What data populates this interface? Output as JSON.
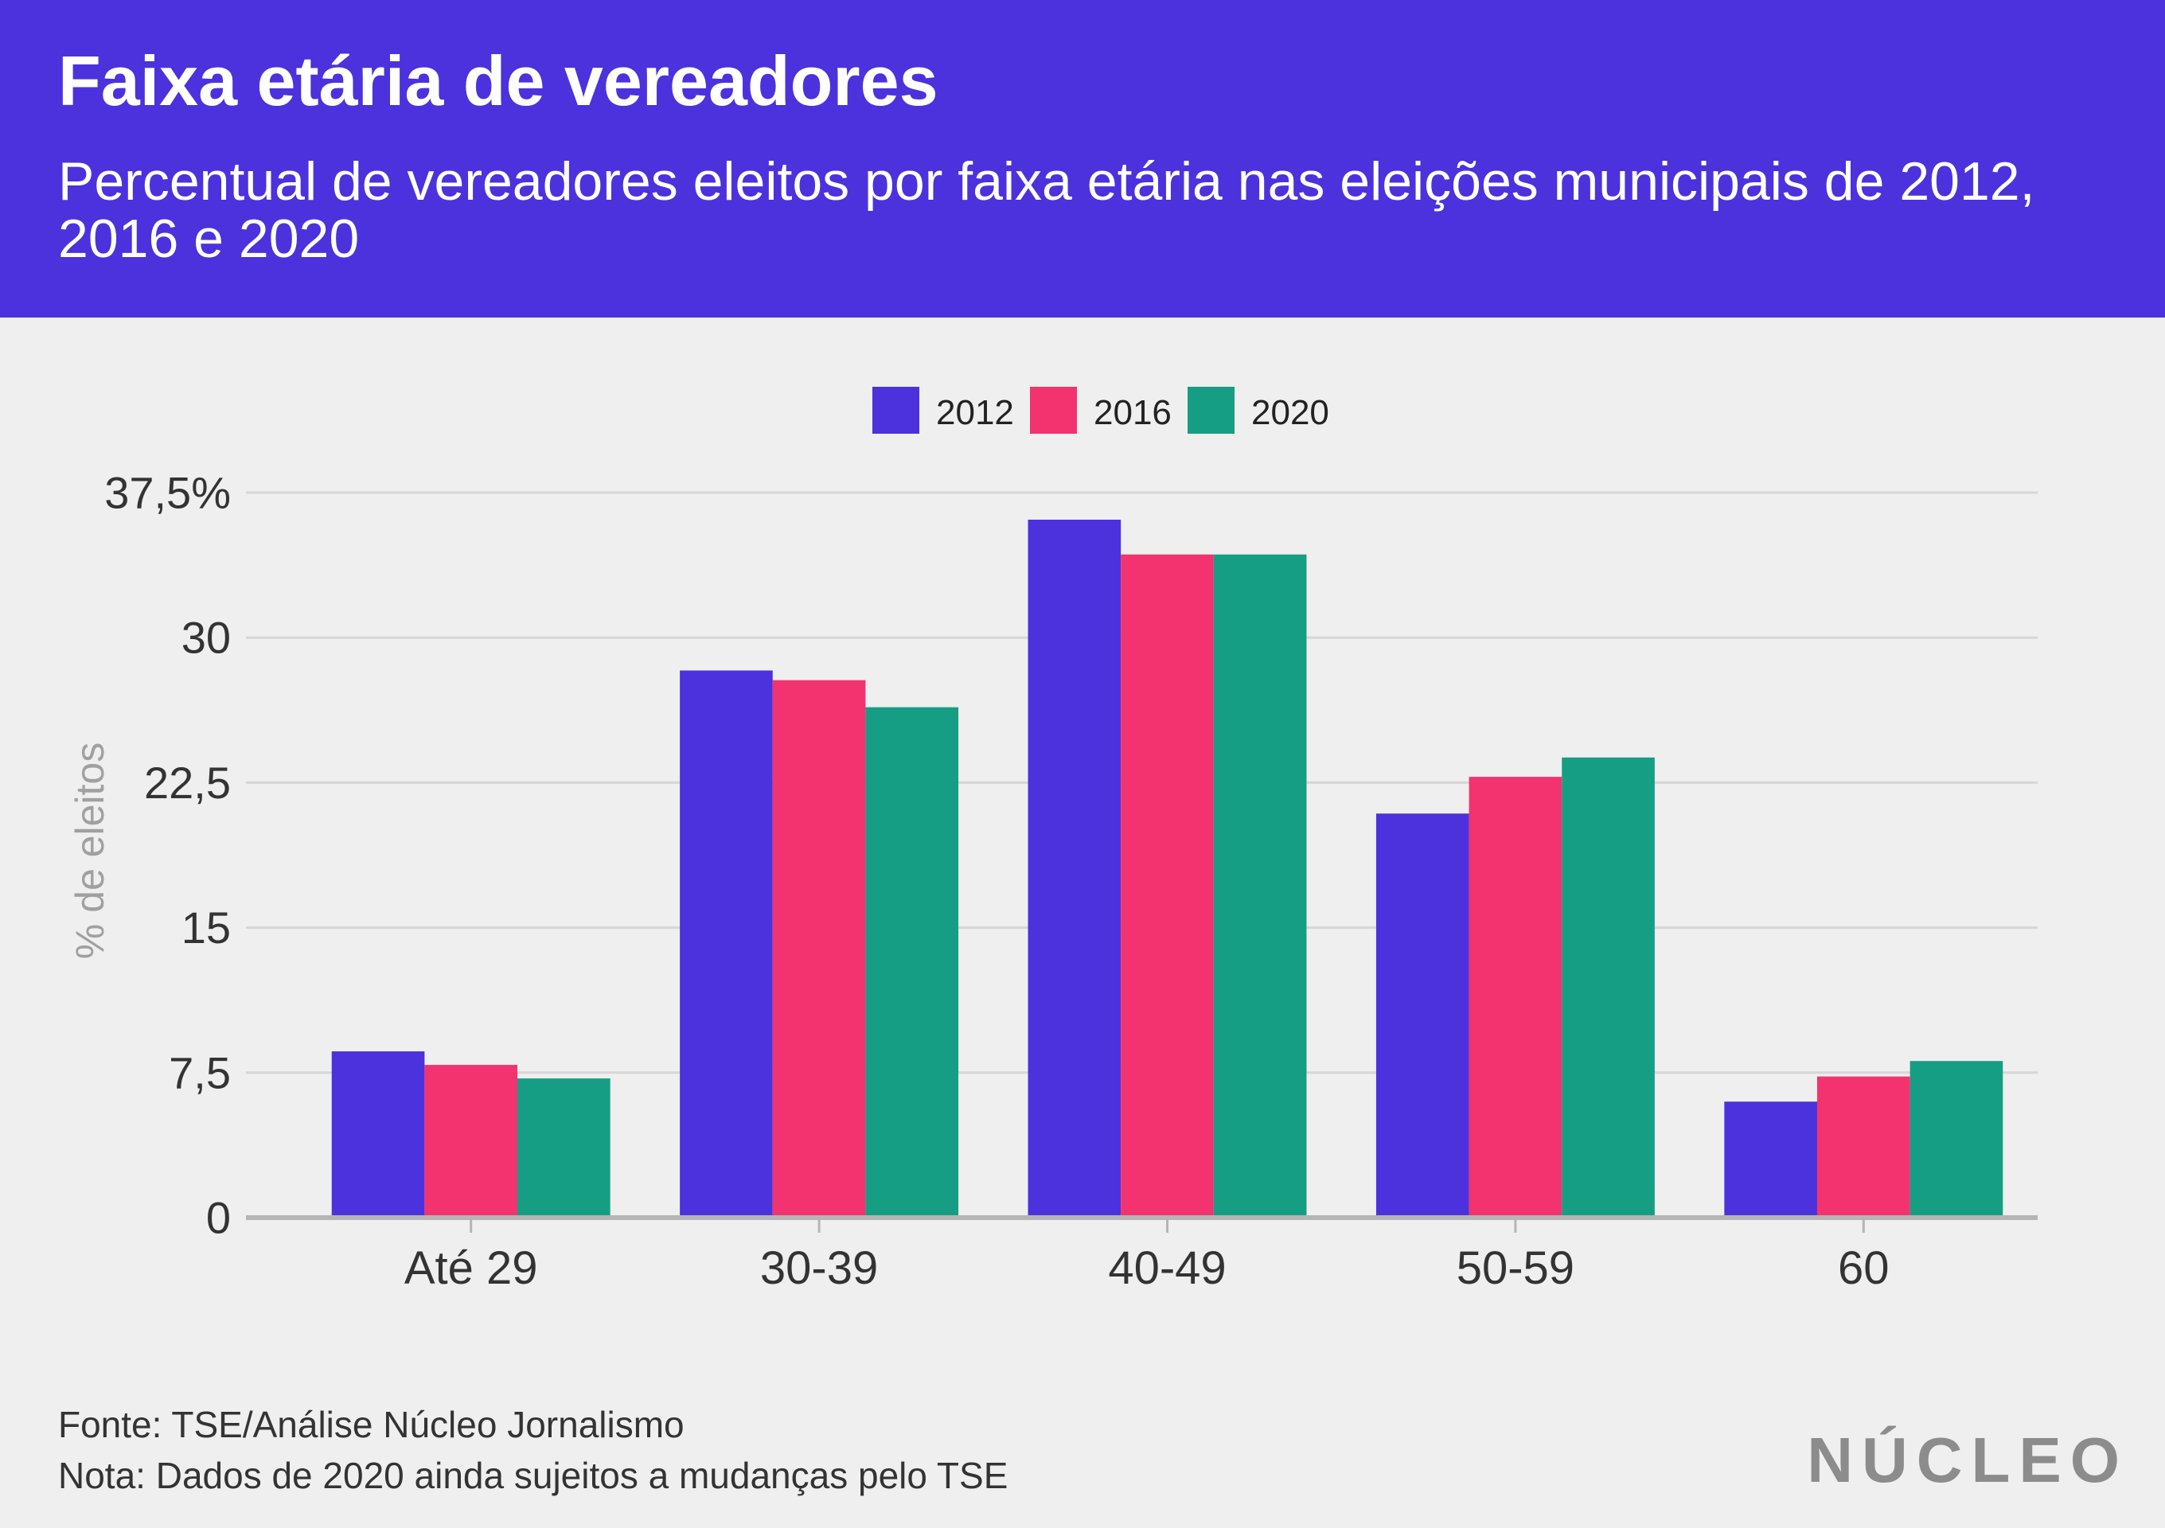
{
  "colors": {
    "header_background": "#4b32dd",
    "page_background": "#efefef",
    "header_text": "#ffffff",
    "gridline": "#d6d6d6",
    "axis": "#b5b5b5",
    "label_text": "#333333",
    "axis_title_text": "#a0a0a0",
    "logo": "#8c8c8c"
  },
  "chart_data": {
    "type": "bar",
    "title": "Faixa etária de vereadores",
    "subtitle": "Percentual de vereadores eleitos por faixa etária nas eleições municipais de 2012, 2016 e 2020",
    "ylabel": "% de eleitos",
    "categories": [
      "Até 29",
      "30-39",
      "40-49",
      "50-59",
      "60"
    ],
    "series": [
      {
        "name": "2012",
        "color": "#4b32dd",
        "values": [
          8.6,
          28.3,
          36.1,
          20.9,
          6.0
        ]
      },
      {
        "name": "2016",
        "color": "#f2336f",
        "values": [
          7.9,
          27.8,
          34.3,
          22.8,
          7.3
        ]
      },
      {
        "name": "2020",
        "color": "#169e84",
        "values": [
          7.2,
          26.4,
          34.3,
          23.8,
          8.1
        ]
      }
    ],
    "ylim": [
      0,
      37.5
    ],
    "yticks": [
      0,
      7.5,
      15,
      22.5,
      30,
      37.5
    ],
    "ytick_labels": [
      "0",
      "7,5",
      "15",
      "22,5",
      "30",
      "37,5%"
    ],
    "grid": true,
    "legend": "top-center"
  },
  "footer": {
    "source": "Fonte: TSE/Análise Núcleo Jornalismo",
    "note": "Nota: Dados de 2020 ainda sujeitos a mudanças pelo TSE",
    "logo": "NÚCLEO"
  }
}
